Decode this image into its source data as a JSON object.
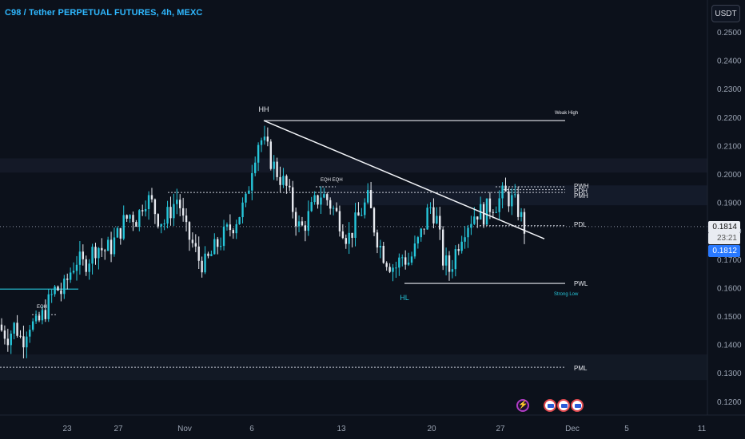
{
  "title": "C98 / Tether PERPETUAL FUTURES, 4h, MEXC",
  "currency_button": "USDT",
  "price_axis": [
    "0.2500",
    "0.2400",
    "0.2300",
    "0.2200",
    "0.2100",
    "0.2000",
    "0.1900",
    "0.1800",
    "0.1700",
    "0.1600",
    "0.1500",
    "0.1400",
    "0.1300",
    "0.1200"
  ],
  "last_price": "0.1814",
  "countdown": "23:21",
  "bid_price": "0.1812",
  "time_axis": [
    "23",
    "27",
    "Nov",
    "6",
    "13",
    "20",
    "27",
    "Dec",
    "5",
    "11"
  ],
  "annotations": {
    "hh": "HH",
    "weak_high": "Weak High",
    "eqh_mid": "EQH EQH",
    "eqh_left": "EQH",
    "pwh": "PWH",
    "pdh": "PDH",
    "pmh": "PMH",
    "pdl": "PDL",
    "pwl": "PWL",
    "hl": "HL",
    "strong_low": "Strong Low",
    "pml": "PML"
  },
  "icons": [
    "lightning-icon",
    "us-flag-icon",
    "us-flag-icon",
    "us-flag-icon"
  ],
  "colors": {
    "up": "#26c6da",
    "down": "#e6e9ef",
    "accent": "#2fb8ff",
    "bid": "#2979ff"
  },
  "chart_data": {
    "type": "candlestick",
    "title": "C98 / Tether PERPETUAL FUTURES, 4h, MEXC",
    "y_unit": "USDT",
    "ylim": [
      0.117,
      0.257
    ],
    "xlabels": [
      "23",
      "27",
      "Nov",
      "6",
      "13",
      "20",
      "27",
      "Dec",
      "5",
      "11"
    ],
    "close_path": [
      0.145,
      0.143,
      0.147,
      0.141,
      0.148,
      0.146,
      0.15,
      0.155,
      0.16,
      0.158,
      0.165,
      0.17,
      0.168,
      0.171,
      0.175,
      0.173,
      0.174,
      0.178,
      0.183,
      0.186,
      0.184,
      0.192,
      0.19,
      0.185,
      0.183,
      0.188,
      0.192,
      0.18,
      0.176,
      0.17,
      0.168,
      0.172,
      0.176,
      0.179,
      0.182,
      0.186,
      0.19,
      0.205,
      0.213,
      0.209,
      0.203,
      0.199,
      0.195,
      0.187,
      0.18,
      0.184,
      0.189,
      0.193,
      0.191,
      0.187,
      0.183,
      0.177,
      0.182,
      0.187,
      0.191,
      0.18,
      0.173,
      0.169,
      0.167,
      0.171,
      0.169,
      0.174,
      0.18,
      0.189,
      0.185,
      0.17,
      0.166,
      0.174,
      0.181,
      0.184,
      0.187,
      0.186,
      0.189,
      0.19,
      0.193,
      0.191,
      0.188,
      0.181
    ],
    "levels": [
      {
        "label": "Weak High",
        "value": 0.2188
      },
      {
        "label": "PWH",
        "value": 0.1955
      },
      {
        "label": "PDH",
        "value": 0.1945
      },
      {
        "label": "PMH",
        "value": 0.1935
      },
      {
        "label": "PDL",
        "value": 0.1818
      },
      {
        "label": "PWL",
        "value": 0.1615
      },
      {
        "label": "PML",
        "value": 0.132
      }
    ],
    "trendline": {
      "from": 0.2188,
      "to": 0.1772
    },
    "last_price": 0.1814
  }
}
